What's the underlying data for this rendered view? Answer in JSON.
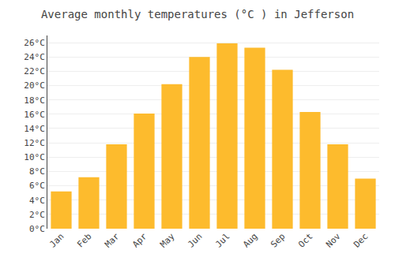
{
  "chart_data": {
    "type": "bar",
    "title": "Average monthly temperatures (°C ) in Jefferson",
    "categories": [
      "Jan",
      "Feb",
      "Mar",
      "Apr",
      "May",
      "Jun",
      "Jul",
      "Aug",
      "Sep",
      "Oct",
      "Nov",
      "Dec"
    ],
    "values": [
      5.2,
      7.2,
      11.8,
      16.1,
      20.2,
      24.0,
      25.9,
      25.3,
      22.2,
      16.3,
      11.8,
      7.0
    ],
    "color": "#FDBB2D",
    "ylim": [
      0,
      27
    ],
    "yticks": [
      {
        "value": 0,
        "label": "0°C"
      },
      {
        "value": 2,
        "label": "2°C"
      },
      {
        "value": 4,
        "label": "4°C"
      },
      {
        "value": 6,
        "label": "6°C"
      },
      {
        "value": 8,
        "label": "8°C"
      },
      {
        "value": 10,
        "label": "10°C"
      },
      {
        "value": 12,
        "label": "12°C"
      },
      {
        "value": 14,
        "label": "14°C"
      },
      {
        "value": 16,
        "label": "16°C"
      },
      {
        "value": 18,
        "label": "18°C"
      },
      {
        "value": 20,
        "label": "20°C"
      },
      {
        "value": 22,
        "label": "22°C"
      },
      {
        "value": 24,
        "label": "24°C"
      },
      {
        "value": 26,
        "label": "26°C"
      }
    ],
    "grid": true
  }
}
